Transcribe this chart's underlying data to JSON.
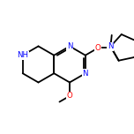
{
  "bg_color": "#ffffff",
  "N_color": "#0000ff",
  "O_color": "#ff0000",
  "bond_color": "#000000",
  "bond_lw": 1.3,
  "figsize": [
    1.52,
    1.52
  ],
  "dpi": 100,
  "xlim": [
    0,
    10
  ],
  "ylim": [
    1,
    9
  ]
}
